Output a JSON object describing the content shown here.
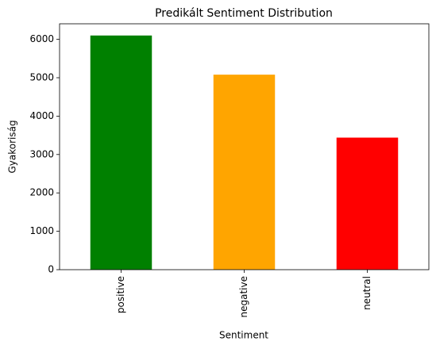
{
  "chart_data": {
    "type": "bar",
    "title": "Predikált Sentiment Distribution",
    "x_label": "Sentiment",
    "y_label": "Gyakoriság",
    "categories": [
      "positive",
      "negative",
      "neutral"
    ],
    "values": [
      6100,
      5080,
      3440
    ],
    "colors": [
      "#008000",
      "#ffa500",
      "#ff0000"
    ],
    "ylim": [
      0,
      6405
    ],
    "yticks": [
      0,
      1000,
      2000,
      3000,
      4000,
      5000,
      6000
    ],
    "grid": false
  }
}
